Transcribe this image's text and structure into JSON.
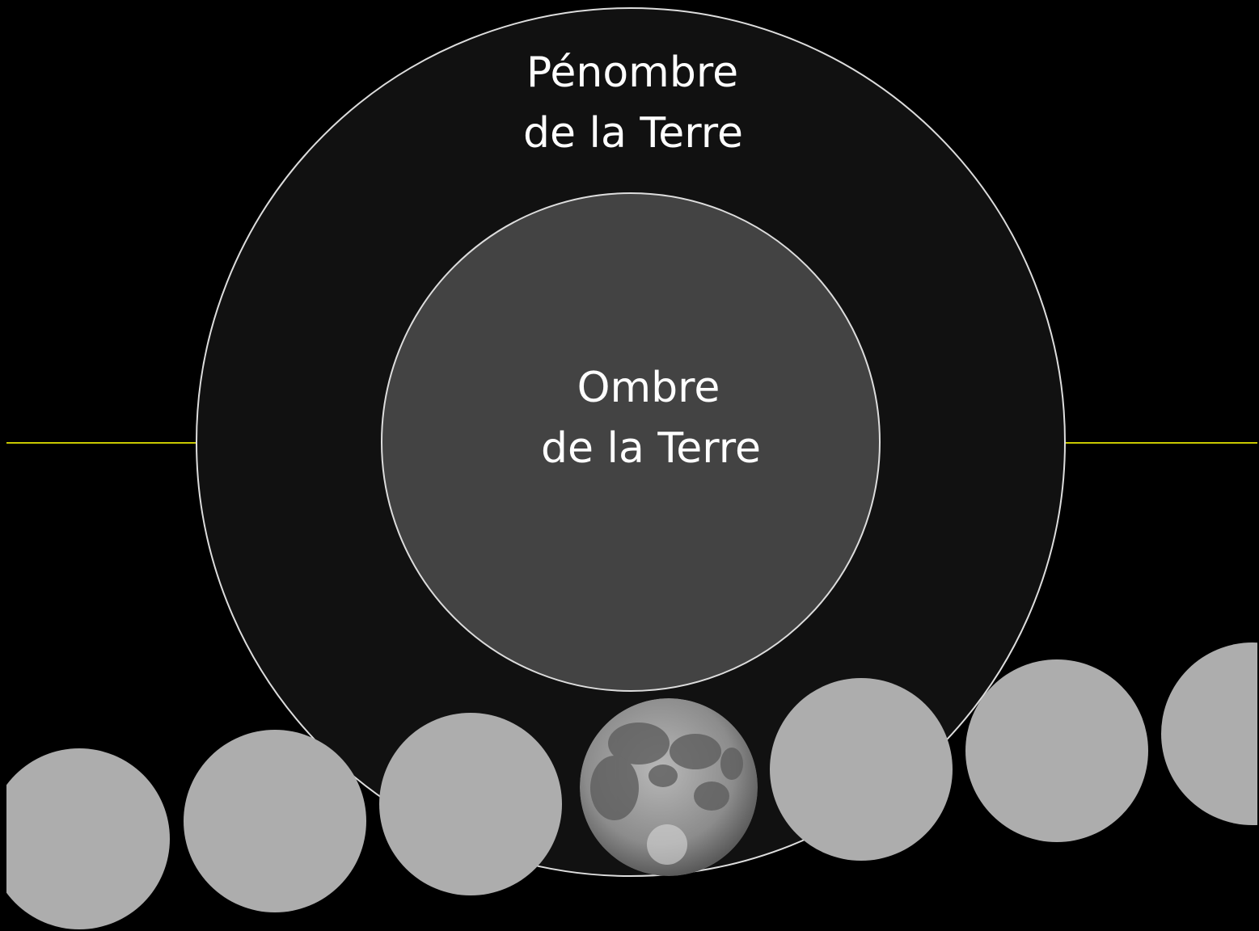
{
  "penumbra": {
    "label": [
      "Pénombre",
      "de la Terre"
    ]
  },
  "umbra": {
    "label": [
      "Ombre",
      "de la Terre"
    ]
  }
}
